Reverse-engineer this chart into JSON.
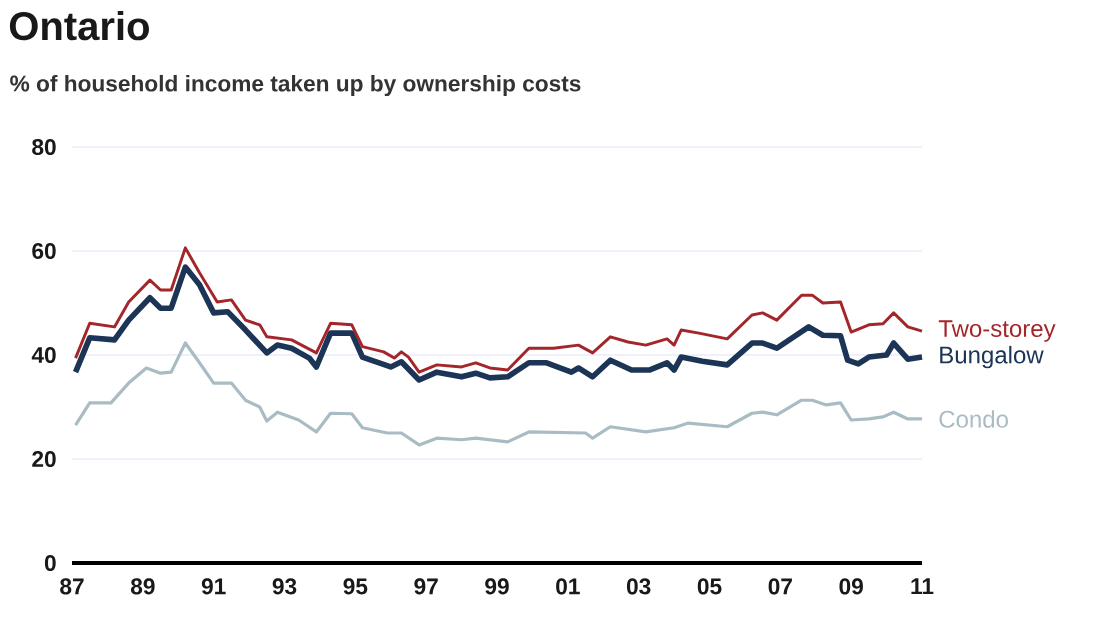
{
  "chart_data": {
    "type": "line",
    "title": "Ontario",
    "subtitle": "% of household income taken up by ownership costs",
    "xlim": [
      1987,
      2011
    ],
    "xticks": [
      {
        "value": 1987,
        "label": "87"
      },
      {
        "value": 1989,
        "label": "89"
      },
      {
        "value": 1991,
        "label": "91"
      },
      {
        "value": 1993,
        "label": "93"
      },
      {
        "value": 1995,
        "label": "95"
      },
      {
        "value": 1997,
        "label": "97"
      },
      {
        "value": 1999,
        "label": "99"
      },
      {
        "value": 2001,
        "label": "01"
      },
      {
        "value": 2003,
        "label": "03"
      },
      {
        "value": 2005,
        "label": "05"
      },
      {
        "value": 2007,
        "label": "07"
      },
      {
        "value": 2009,
        "label": "09"
      },
      {
        "value": 2011,
        "label": "11"
      }
    ],
    "ylim": [
      0,
      80
    ],
    "yticks": [
      0,
      20,
      40,
      60,
      80
    ],
    "grid": "y",
    "marker": "none",
    "line_style": "solid",
    "series": [
      {
        "name": "Two-storey",
        "color": "#a3262a",
        "x": [
          1987.1,
          1987.5,
          1988.2,
          1988.6,
          1989.2,
          1989.5,
          1989.8,
          1990.2,
          1990.6,
          1991.1,
          1991.5,
          1991.9,
          1992.3,
          1992.5,
          1993.2,
          1993.9,
          1994.3,
          1994.9,
          1995.2,
          1995.8,
          1996.1,
          1996.3,
          1996.5,
          1996.8,
          1997.3,
          1998.0,
          1998.4,
          1998.8,
          1999.3,
          1999.9,
          2000.6,
          2001.3,
          2001.7,
          2002.2,
          2002.7,
          2003.2,
          2003.8,
          2004.0,
          2004.2,
          2004.7,
          2005.5,
          2006.2,
          2006.5,
          2006.9,
          2007.6,
          2007.9,
          2008.2,
          2008.7,
          2009.0,
          2009.5,
          2009.9,
          2010.2,
          2010.6,
          2011.0
        ],
        "values": [
          39.4,
          46.1,
          45.4,
          50.2,
          54.4,
          52.5,
          52.5,
          60.6,
          55.8,
          50.2,
          50.6,
          46.7,
          45.8,
          43.5,
          42.9,
          40.4,
          46.1,
          45.8,
          41.6,
          40.6,
          39.4,
          40.6,
          39.6,
          36.7,
          38.1,
          37.7,
          38.5,
          37.5,
          37.1,
          41.3,
          41.3,
          41.9,
          40.4,
          43.5,
          42.5,
          41.9,
          43.1,
          41.9,
          44.8,
          44.2,
          43.1,
          47.7,
          48.1,
          46.7,
          51.5,
          51.5,
          50.0,
          50.2,
          44.4,
          45.8,
          46.0,
          48.1,
          45.4,
          44.6
        ]
      },
      {
        "name": "Bungalow",
        "color": "#1c3556",
        "x": [
          1987.1,
          1987.5,
          1988.2,
          1988.6,
          1989.2,
          1989.5,
          1989.8,
          1990.2,
          1990.6,
          1991.0,
          1991.4,
          1991.9,
          1992.5,
          1992.8,
          1993.2,
          1993.7,
          1993.9,
          1994.3,
          1994.9,
          1995.2,
          1996.0,
          1996.3,
          1996.8,
          1997.3,
          1998.0,
          1998.4,
          1998.8,
          1999.3,
          1999.9,
          2000.4,
          2001.1,
          2001.3,
          2001.7,
          2002.2,
          2002.8,
          2003.3,
          2003.8,
          2004.0,
          2004.2,
          2004.8,
          2005.5,
          2006.2,
          2006.5,
          2006.9,
          2007.8,
          2008.2,
          2008.7,
          2008.9,
          2009.2,
          2009.5,
          2010.0,
          2010.2,
          2010.6,
          2011.0
        ],
        "values": [
          36.7,
          43.3,
          42.9,
          46.7,
          51.0,
          49.0,
          49.0,
          56.9,
          53.5,
          48.1,
          48.3,
          44.8,
          40.4,
          41.9,
          41.3,
          39.4,
          37.7,
          44.2,
          44.2,
          39.6,
          37.7,
          38.7,
          35.2,
          36.7,
          35.8,
          36.5,
          35.6,
          35.8,
          38.5,
          38.5,
          36.7,
          37.5,
          35.8,
          39.0,
          37.1,
          37.1,
          38.5,
          37.1,
          39.6,
          38.8,
          38.1,
          42.3,
          42.3,
          41.3,
          45.4,
          43.8,
          43.7,
          39.0,
          38.3,
          39.6,
          40.0,
          42.3,
          39.2,
          39.6
        ]
      },
      {
        "name": "Condo",
        "color": "#a9bcc4",
        "x": [
          1987.1,
          1987.5,
          1988.1,
          1988.6,
          1989.1,
          1989.5,
          1989.8,
          1990.2,
          1990.6,
          1991.0,
          1991.5,
          1991.9,
          1992.3,
          1992.5,
          1992.8,
          1993.4,
          1993.9,
          1994.3,
          1994.9,
          1995.2,
          1995.9,
          1996.3,
          1996.8,
          1997.3,
          1998.0,
          1998.4,
          1999.3,
          1999.9,
          2001.5,
          2001.7,
          2002.2,
          2003.2,
          2004.0,
          2004.4,
          2005.5,
          2006.2,
          2006.5,
          2006.9,
          2007.6,
          2007.9,
          2008.3,
          2008.7,
          2009.0,
          2009.5,
          2009.9,
          2010.2,
          2010.6,
          2011.0
        ],
        "values": [
          26.5,
          30.8,
          30.8,
          34.6,
          37.5,
          36.5,
          36.7,
          42.3,
          38.5,
          34.6,
          34.6,
          31.3,
          30.0,
          27.3,
          29.0,
          27.5,
          25.2,
          28.8,
          28.7,
          26.0,
          25.0,
          25.0,
          22.7,
          24.0,
          23.7,
          24.0,
          23.3,
          25.2,
          25.0,
          24.0,
          26.2,
          25.2,
          26.0,
          26.9,
          26.2,
          28.8,
          29.0,
          28.5,
          31.3,
          31.3,
          30.4,
          30.8,
          27.5,
          27.7,
          28.1,
          29.0,
          27.7,
          27.7
        ]
      }
    ]
  }
}
